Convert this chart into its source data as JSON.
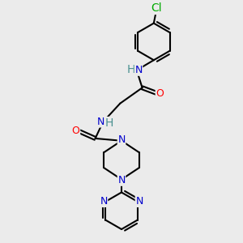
{
  "background_color": "#ebebeb",
  "bond_color": "#000000",
  "bond_width": 1.5,
  "atom_colors": {
    "C": "#000000",
    "N": "#0000cc",
    "O": "#ff0000",
    "Cl": "#00aa00",
    "H": "#4a9090"
  },
  "font_size": 9,
  "fig_size": [
    3.0,
    3.0
  ],
  "dpi": 100
}
